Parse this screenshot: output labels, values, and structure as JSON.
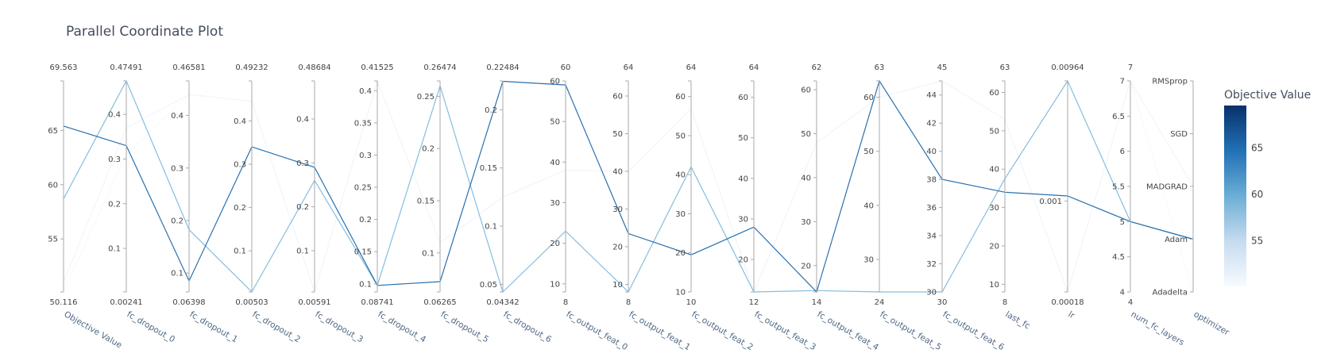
{
  "chart_data": {
    "type": "parallel_coordinates",
    "title": "Parallel Coordinate Plot",
    "colorbar": {
      "title": "Objective Value",
      "range": [
        50.116,
        69.563
      ],
      "ticks": [
        55,
        60,
        65
      ],
      "colors": [
        "#f7fbff",
        "#c6dbef",
        "#6baed6",
        "#2171b5",
        "#08306b"
      ]
    },
    "dimensions": [
      {
        "label": "Objective Value",
        "range": [
          50.116,
          69.563
        ],
        "range_labels": [
          "50.116",
          "69.563"
        ],
        "ticks": [
          55,
          60,
          65
        ]
      },
      {
        "label": "fc_dropout_0",
        "range": [
          0.00241,
          0.47491
        ],
        "range_labels": [
          "0.00241",
          "0.47491"
        ],
        "ticks": [
          0.1,
          0.2,
          0.3,
          0.4
        ]
      },
      {
        "label": "fc_dropout_1",
        "range": [
          0.06398,
          0.46581
        ],
        "range_labels": [
          "0.06398",
          "0.46581"
        ],
        "ticks": [
          0.1,
          0.2,
          0.3,
          0.4
        ]
      },
      {
        "label": "fc_dropout_2",
        "range": [
          0.00503,
          0.49232
        ],
        "range_labels": [
          "0.00503",
          "0.49232"
        ],
        "ticks": [
          0.1,
          0.2,
          0.3,
          0.4
        ]
      },
      {
        "label": "fc_dropout_3",
        "range": [
          0.00591,
          0.48684
        ],
        "range_labels": [
          "0.00591",
          "0.48684"
        ],
        "ticks": [
          0.1,
          0.2,
          0.3,
          0.4
        ]
      },
      {
        "label": "fc_dropout_4",
        "range": [
          0.08741,
          0.41525
        ],
        "range_labels": [
          "0.08741",
          "0.41525"
        ],
        "ticks": [
          0.1,
          0.15,
          0.2,
          0.25,
          0.3,
          0.35,
          0.4
        ]
      },
      {
        "label": "fc_dropout_5",
        "range": [
          0.06265,
          0.26474
        ],
        "range_labels": [
          "0.06265",
          "0.26474"
        ],
        "ticks": [
          0.1,
          0.15,
          0.2,
          0.25
        ]
      },
      {
        "label": "fc_dropout_6",
        "range": [
          0.04342,
          0.22484
        ],
        "range_labels": [
          "0.04342",
          "0.22484"
        ],
        "ticks": [
          0.05,
          0.1,
          0.15,
          0.2
        ]
      },
      {
        "label": "fc_output_feat_0",
        "range": [
          8,
          60
        ],
        "range_labels": [
          "8",
          "60"
        ],
        "ticks": [
          10,
          20,
          30,
          40,
          50,
          60
        ]
      },
      {
        "label": "fc_output_feat_1",
        "range": [
          8,
          64
        ],
        "range_labels": [
          "8",
          "64"
        ],
        "ticks": [
          10,
          20,
          30,
          40,
          50,
          60
        ]
      },
      {
        "label": "fc_output_feat_2",
        "range": [
          10,
          64
        ],
        "range_labels": [
          "10",
          "64"
        ],
        "ticks": [
          10,
          20,
          30,
          40,
          50,
          60
        ]
      },
      {
        "label": "fc_output_feat_3",
        "range": [
          12,
          64
        ],
        "range_labels": [
          "12",
          "64"
        ],
        "ticks": [
          20,
          30,
          40,
          50,
          60
        ]
      },
      {
        "label": "fc_output_feat_4",
        "range": [
          14,
          62
        ],
        "range_labels": [
          "14",
          "62"
        ],
        "ticks": [
          20,
          30,
          40,
          50,
          60
        ]
      },
      {
        "label": "fc_output_feat_5",
        "range": [
          24,
          63
        ],
        "range_labels": [
          "24",
          "63"
        ],
        "ticks": [
          30,
          40,
          50,
          60
        ]
      },
      {
        "label": "fc_output_feat_6",
        "range": [
          30,
          45
        ],
        "range_labels": [
          "30",
          "45"
        ],
        "ticks": [
          30,
          32,
          34,
          36,
          38,
          40,
          42,
          44
        ]
      },
      {
        "label": "last_fc",
        "range": [
          8,
          63
        ],
        "range_labels": [
          "8",
          "63"
        ],
        "ticks": [
          10,
          20,
          30,
          40,
          50,
          60
        ]
      },
      {
        "label": "lr",
        "range": [
          0.00018,
          0.00964
        ],
        "range_labels": [
          "0.00018",
          "0.00964"
        ],
        "ticks": [
          0.001
        ],
        "log": true
      },
      {
        "label": "num_fc_layers",
        "range": [
          4,
          7
        ],
        "range_labels": [
          "4",
          "7"
        ],
        "ticks": [
          4,
          4.5,
          5,
          5.5,
          6,
          6.5,
          7
        ]
      },
      {
        "label": "optimizer",
        "range": [
          0,
          4
        ],
        "range_labels": [],
        "categorical": true,
        "categories": [
          "Adadelta",
          "Adam",
          "MADGRAD",
          "SGD",
          "RMSprop"
        ]
      }
    ],
    "trials": [
      {
        "objective": 65.4,
        "values": [
          65.4,
          0.33,
          0.085,
          0.34,
          0.29,
          0.0975,
          0.0725,
          0.2245,
          59,
          23.5,
          19.5,
          28,
          14,
          63,
          38,
          34,
          0.0011,
          5,
          1
        ]
      },
      {
        "objective": 58.7,
        "values": [
          58.7,
          0.4749,
          0.1825,
          0.005,
          0.26,
          0.0975,
          0.26,
          0.0434,
          23,
          8,
          42,
          12,
          14.3,
          24,
          30,
          37.5,
          0.00964,
          5,
          1
        ]
      },
      {
        "objective": 51.0,
        "values": [
          51.0,
          0.37,
          0.44,
          0.445,
          0.0059,
          0.4152,
          0.11,
          0.125,
          38,
          40,
          57,
          12,
          48,
          60,
          45,
          53,
          0.00018,
          7,
          2
        ]
      },
      {
        "objective": 50.2,
        "values": [
          50.2,
          0.31,
          0.44,
          0.445,
          0.0059,
          0.4152,
          0.11,
          0.125,
          38,
          40,
          57,
          12,
          48,
          60,
          45,
          53,
          0.00018,
          7,
          0
        ]
      }
    ]
  }
}
